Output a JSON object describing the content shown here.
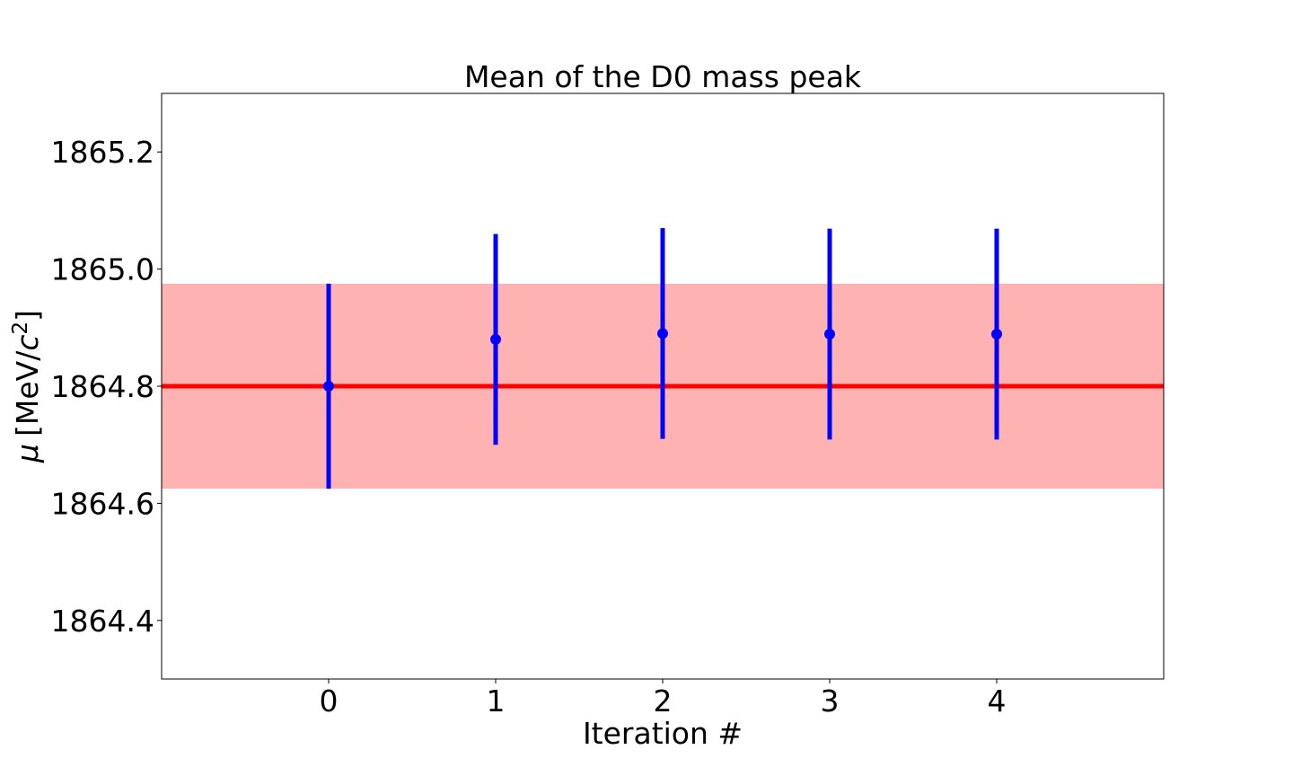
{
  "chart_data": {
    "type": "scatter",
    "title": "Mean of the D0 mass peak",
    "xlabel": "Iteration #",
    "ylabel_symbol": "μ",
    "ylabel_unit_prefix": "[MeV/",
    "ylabel_unit_var": "c",
    "ylabel_unit_exp": "2",
    "ylabel_unit_suffix": "]",
    "xlim": [
      -1,
      5
    ],
    "ylim": [
      1864.3,
      1865.3
    ],
    "xticks": [
      0,
      1,
      2,
      3,
      4
    ],
    "xtick_labels": [
      "0",
      "1",
      "2",
      "3",
      "4"
    ],
    "yticks": [
      1864.4,
      1864.6,
      1864.8,
      1865.0,
      1865.2
    ],
    "ytick_labels": [
      "1864.4",
      "1864.6",
      "1864.8",
      "1865.0",
      "1865.2"
    ],
    "grid": false,
    "reference": {
      "value": 1864.8,
      "band_low": 1864.625,
      "band_high": 1864.975,
      "line_color": "#ff0000",
      "band_color": "#ff0000"
    },
    "series": [
      {
        "color": "#0000ff",
        "x": [
          0,
          1,
          2,
          3,
          4
        ],
        "y": [
          1864.8,
          1864.88,
          1864.89,
          1864.889,
          1864.889
        ],
        "yerr_low": [
          1864.625,
          1864.7,
          1864.71,
          1864.709,
          1864.709
        ],
        "yerr_high": [
          1864.975,
          1865.06,
          1865.07,
          1865.069,
          1865.069
        ]
      }
    ]
  }
}
